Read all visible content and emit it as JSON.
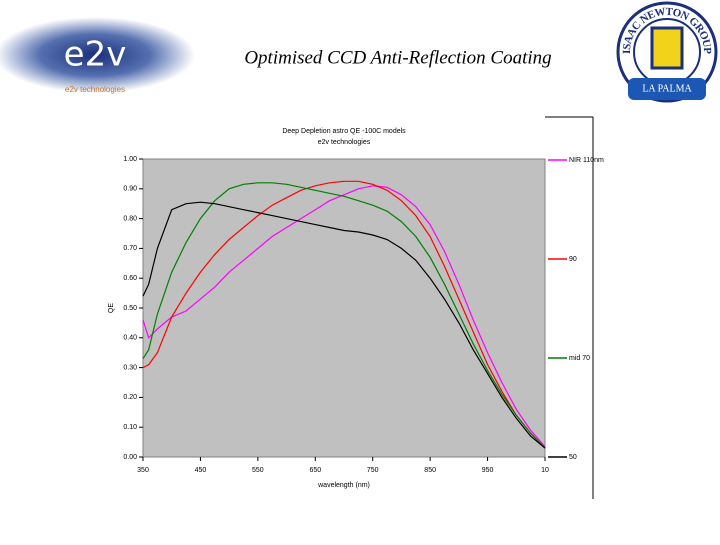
{
  "header": {
    "title": "Optimised CCD Anti-Reflection Coating",
    "logo_left": "e2v",
    "logo_left_caption": "e2v technologies",
    "logo_right_top": "ISAAC NEWTON GROUP",
    "logo_right_bottom": "LA PALMA"
  },
  "chart_data": {
    "type": "line",
    "title": "Deep Depletion astro QE -100C models",
    "subtitle": "e2v technologies",
    "x_label": "wavelength (nm)",
    "y_label": "QE",
    "x": [
      350,
      360,
      375,
      400,
      425,
      450,
      475,
      500,
      525,
      550,
      575,
      600,
      625,
      650,
      675,
      700,
      725,
      750,
      775,
      800,
      825,
      850,
      875,
      900,
      925,
      950,
      975,
      1000,
      1025,
      1050
    ],
    "series": [
      {
        "name": "NIR 110nm",
        "color": "#ff00ff",
        "values": [
          0.46,
          0.4,
          0.43,
          0.47,
          0.49,
          0.53,
          0.57,
          0.62,
          0.66,
          0.7,
          0.74,
          0.77,
          0.8,
          0.83,
          0.86,
          0.88,
          0.9,
          0.91,
          0.905,
          0.88,
          0.84,
          0.78,
          0.69,
          0.58,
          0.46,
          0.35,
          0.25,
          0.16,
          0.09,
          0.035
        ]
      },
      {
        "name": "90",
        "color": "#ff0000",
        "values": [
          0.3,
          0.31,
          0.35,
          0.47,
          0.55,
          0.62,
          0.68,
          0.73,
          0.77,
          0.81,
          0.845,
          0.87,
          0.895,
          0.91,
          0.92,
          0.925,
          0.925,
          0.915,
          0.895,
          0.86,
          0.81,
          0.74,
          0.64,
          0.53,
          0.42,
          0.31,
          0.22,
          0.14,
          0.08,
          0.03
        ]
      },
      {
        "name": "mid 70",
        "color": "#008000",
        "values": [
          0.33,
          0.36,
          0.48,
          0.62,
          0.72,
          0.8,
          0.86,
          0.9,
          0.915,
          0.92,
          0.92,
          0.915,
          0.905,
          0.895,
          0.885,
          0.875,
          0.86,
          0.845,
          0.825,
          0.79,
          0.74,
          0.67,
          0.58,
          0.48,
          0.38,
          0.29,
          0.21,
          0.14,
          0.08,
          0.03
        ]
      },
      {
        "name": "50",
        "color": "#000000",
        "values": [
          0.54,
          0.58,
          0.7,
          0.83,
          0.85,
          0.855,
          0.85,
          0.84,
          0.83,
          0.82,
          0.81,
          0.8,
          0.79,
          0.78,
          0.77,
          0.76,
          0.755,
          0.745,
          0.73,
          0.7,
          0.66,
          0.6,
          0.53,
          0.45,
          0.36,
          0.28,
          0.2,
          0.13,
          0.07,
          0.03
        ]
      }
    ],
    "xlim": [
      350,
      1050
    ],
    "ylim": [
      0,
      1
    ],
    "xticks": [
      350,
      450,
      550,
      650,
      750,
      850,
      950,
      {
        "value": 1050,
        "label": "10"
      }
    ],
    "yticks": [
      {
        "value": 0,
        "label": "0.00"
      },
      {
        "value": 0.1,
        "label": "0.10"
      },
      {
        "value": 0.2,
        "label": "0.20"
      },
      {
        "value": 0.3,
        "label": "0.30"
      },
      {
        "value": 0.4,
        "label": "0.40"
      },
      {
        "value": 0.5,
        "label": "0.50"
      },
      {
        "value": 0.6,
        "label": "0.60"
      },
      {
        "value": 0.7,
        "label": "0.70"
      },
      {
        "value": 0.8,
        "label": "0.80"
      },
      {
        "value": 0.9,
        "label": "0.90"
      },
      {
        "value": 1,
        "label": "1.00"
      }
    ],
    "plot_background": "#c0c0c0",
    "legend": "right"
  }
}
